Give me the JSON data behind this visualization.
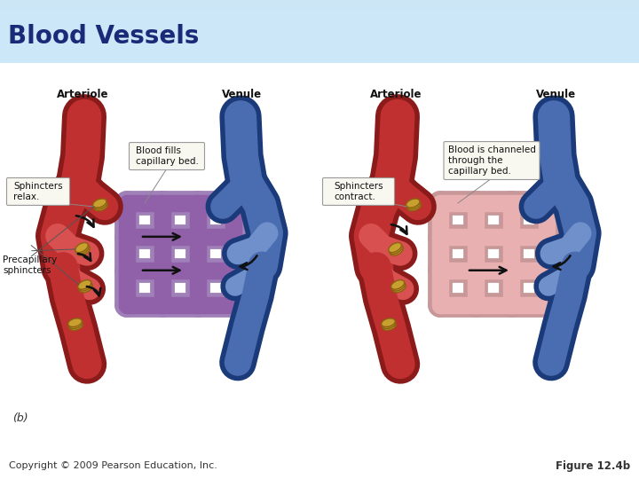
{
  "title": "Blood Vessels",
  "title_color": "#1b2a78",
  "title_fontsize": 20,
  "header_bg": "#cce5f5",
  "body_bg": "#ffffff",
  "footer_left": "Copyright © 2009 Pearson Education, Inc.",
  "footer_right": "Figure 12.4b",
  "footer_fontsize": 8,
  "footer_color": "#333333",
  "label_arteriole": "Arteriole",
  "label_venule": "Venule",
  "label_sphincters_relax": "Sphincters\nrelax.",
  "label_blood_fills": "Blood fills\ncapillary bed.",
  "label_precapillary": "Precapillary\nsphincters",
  "label_sphincters_contract": "Sphincters\ncontract.",
  "label_blood_channeled": "Blood is channeled\nthrough the\ncapillary bed.",
  "label_b": "(b)",
  "art_red_dark": "#8b1a1a",
  "art_red_mid": "#c03030",
  "art_red_light": "#d95050",
  "ven_blue_dark": "#1a3a7a",
  "ven_blue_mid": "#4a6cb0",
  "ven_blue_light": "#7090cc",
  "cap_purple": "#9060a8",
  "cap_pink": "#e8b0b0",
  "cap_outline_purple": "#a080b8",
  "cap_outline_pink": "#c89898",
  "sphincter_gold": "#c8a030",
  "sphincter_dark": "#8b6010",
  "arrow_col": "#111111",
  "callout_bg": "#f8f8f0",
  "callout_border": "#999999"
}
